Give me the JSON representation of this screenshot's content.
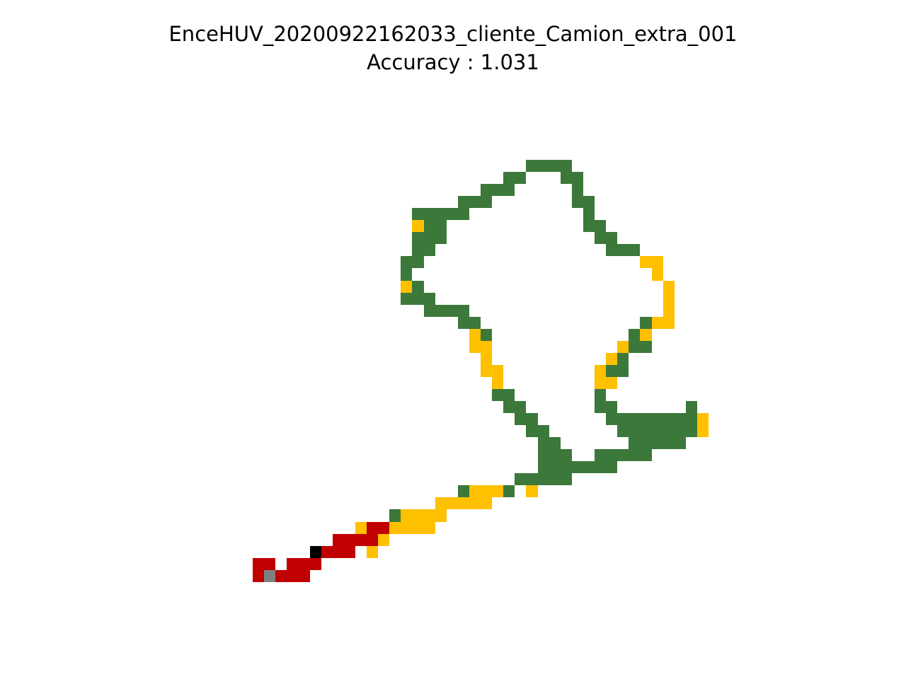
{
  "chart_data": {
    "type": "heatmap",
    "title": "EnceHUV_20200922162033_cliente_Camion_extra_001",
    "subtitle": "Accuracy : 1.031",
    "xlabel": "",
    "ylabel": "",
    "grid": false,
    "axes_visible": false,
    "palette": {
      "G": "#3b783a",
      "Y": "#ffc000",
      "R": "#c00000",
      "K": "#000000",
      "A": "#808080"
    },
    "cells": {
      "G": [
        [
          24,
          0
        ],
        [
          25,
          0
        ],
        [
          26,
          0
        ],
        [
          27,
          0
        ],
        [
          22,
          1
        ],
        [
          23,
          1
        ],
        [
          27,
          1
        ],
        [
          28,
          1
        ],
        [
          20,
          2
        ],
        [
          21,
          2
        ],
        [
          22,
          2
        ],
        [
          28,
          2
        ],
        [
          18,
          3
        ],
        [
          19,
          3
        ],
        [
          20,
          3
        ],
        [
          28,
          3
        ],
        [
          29,
          3
        ],
        [
          14,
          4
        ],
        [
          15,
          4
        ],
        [
          16,
          4
        ],
        [
          17,
          4
        ],
        [
          18,
          4
        ],
        [
          29,
          4
        ],
        [
          15,
          5
        ],
        [
          16,
          5
        ],
        [
          29,
          5
        ],
        [
          30,
          5
        ],
        [
          14,
          6
        ],
        [
          15,
          6
        ],
        [
          16,
          6
        ],
        [
          30,
          6
        ],
        [
          31,
          6
        ],
        [
          14,
          7
        ],
        [
          15,
          7
        ],
        [
          31,
          7
        ],
        [
          32,
          7
        ],
        [
          33,
          7
        ],
        [
          13,
          8
        ],
        [
          14,
          8
        ],
        [
          13,
          9
        ],
        [
          14,
          10
        ],
        [
          13,
          11
        ],
        [
          14,
          11
        ],
        [
          15,
          11
        ],
        [
          15,
          12
        ],
        [
          16,
          12
        ],
        [
          17,
          12
        ],
        [
          18,
          12
        ],
        [
          18,
          13
        ],
        [
          19,
          13
        ],
        [
          34,
          13
        ],
        [
          20,
          14
        ],
        [
          33,
          14
        ],
        [
          33,
          15
        ],
        [
          34,
          15
        ],
        [
          31,
          16
        ],
        [
          32,
          16
        ],
        [
          31,
          17
        ],
        [
          32,
          17
        ],
        [
          21,
          19
        ],
        [
          22,
          19
        ],
        [
          30,
          19
        ],
        [
          22,
          20
        ],
        [
          23,
          20
        ],
        [
          30,
          20
        ],
        [
          31,
          20
        ],
        [
          38,
          20
        ],
        [
          23,
          21
        ],
        [
          24,
          21
        ],
        [
          31,
          21
        ],
        [
          32,
          21
        ],
        [
          33,
          21
        ],
        [
          34,
          21
        ],
        [
          35,
          21
        ],
        [
          36,
          21
        ],
        [
          37,
          21
        ],
        [
          38,
          21
        ],
        [
          24,
          22
        ],
        [
          25,
          22
        ],
        [
          32,
          22
        ],
        [
          33,
          22
        ],
        [
          34,
          22
        ],
        [
          35,
          22
        ],
        [
          36,
          22
        ],
        [
          37,
          22
        ],
        [
          38,
          22
        ],
        [
          25,
          23
        ],
        [
          26,
          23
        ],
        [
          33,
          23
        ],
        [
          34,
          23
        ],
        [
          35,
          23
        ],
        [
          36,
          23
        ],
        [
          37,
          23
        ],
        [
          25,
          24
        ],
        [
          26,
          24
        ],
        [
          27,
          24
        ],
        [
          30,
          24
        ],
        [
          31,
          24
        ],
        [
          32,
          24
        ],
        [
          33,
          24
        ],
        [
          34,
          24
        ],
        [
          25,
          25
        ],
        [
          26,
          25
        ],
        [
          27,
          25
        ],
        [
          28,
          25
        ],
        [
          29,
          25
        ],
        [
          30,
          25
        ],
        [
          31,
          25
        ],
        [
          23,
          26
        ],
        [
          24,
          26
        ],
        [
          25,
          26
        ],
        [
          26,
          26
        ],
        [
          27,
          26
        ],
        [
          18,
          27
        ],
        [
          22,
          27
        ],
        [
          12,
          29
        ]
      ],
      "Y": [
        [
          14,
          5
        ],
        [
          34,
          8
        ],
        [
          35,
          8
        ],
        [
          35,
          9
        ],
        [
          36,
          10
        ],
        [
          36,
          11
        ],
        [
          36,
          12
        ],
        [
          35,
          13
        ],
        [
          36,
          13
        ],
        [
          19,
          14
        ],
        [
          34,
          14
        ],
        [
          19,
          15
        ],
        [
          20,
          15
        ],
        [
          32,
          15
        ],
        [
          20,
          16
        ],
        [
          31,
          16
        ],
        [
          20,
          17
        ],
        [
          21,
          17
        ],
        [
          30,
          17
        ],
        [
          21,
          18
        ],
        [
          30,
          18
        ],
        [
          31,
          18
        ],
        [
          13,
          10
        ],
        [
          39,
          21
        ],
        [
          39,
          22
        ],
        [
          19,
          27
        ],
        [
          20,
          27
        ],
        [
          21,
          27
        ],
        [
          24,
          27
        ],
        [
          16,
          28
        ],
        [
          17,
          28
        ],
        [
          18,
          28
        ],
        [
          19,
          28
        ],
        [
          20,
          28
        ],
        [
          13,
          29
        ],
        [
          14,
          29
        ],
        [
          15,
          29
        ],
        [
          16,
          29
        ],
        [
          9,
          30
        ],
        [
          12,
          30
        ],
        [
          13,
          30
        ],
        [
          14,
          30
        ],
        [
          15,
          30
        ],
        [
          11,
          31
        ],
        [
          10,
          32
        ]
      ],
      "R": [
        [
          10,
          30
        ],
        [
          11,
          30
        ],
        [
          7,
          31
        ],
        [
          8,
          31
        ],
        [
          9,
          31
        ],
        [
          10,
          31
        ],
        [
          6,
          32
        ],
        [
          7,
          32
        ],
        [
          8,
          32
        ],
        [
          0,
          33
        ],
        [
          1,
          33
        ],
        [
          3,
          33
        ],
        [
          4,
          33
        ],
        [
          5,
          33
        ],
        [
          0,
          34
        ],
        [
          2,
          34
        ],
        [
          3,
          34
        ],
        [
          4,
          34
        ]
      ],
      "K": [
        [
          5,
          32
        ]
      ],
      "A": [
        [
          1,
          34
        ]
      ]
    }
  }
}
